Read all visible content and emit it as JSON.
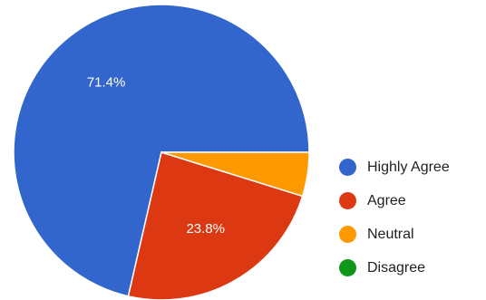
{
  "chart_data": {
    "type": "pie",
    "categories": [
      "Highly Agree",
      "Agree",
      "Neutral",
      "Disagree"
    ],
    "values": [
      71.4,
      23.8,
      4.8,
      0
    ],
    "colors": [
      "#3366cc",
      "#dc3912",
      "#ff9900",
      "#109618"
    ],
    "data_labels": [
      "71.4%",
      "23.8%",
      "",
      ""
    ],
    "legend_position": "right"
  }
}
